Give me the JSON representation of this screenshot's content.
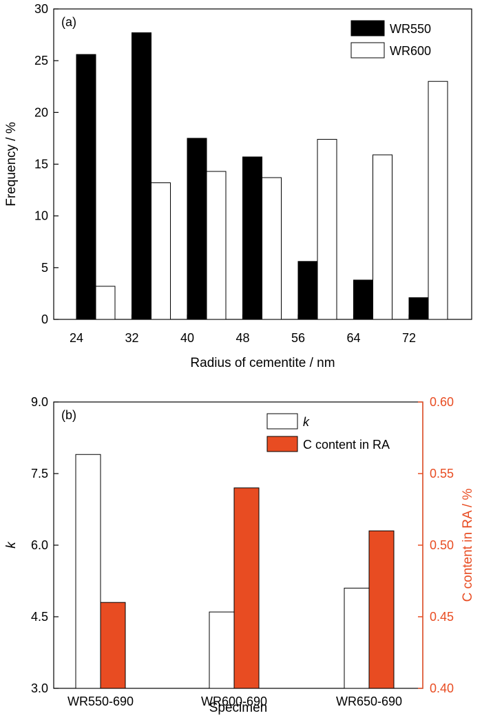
{
  "chart_data": [
    {
      "type": "bar",
      "panel_label": "(a)",
      "xlabel": "Radius of cementite / nm",
      "ylabel": "Frequency / %",
      "categories": [
        "24",
        "32",
        "40",
        "48",
        "56",
        "64",
        "72"
      ],
      "ylim": [
        0,
        30
      ],
      "yticks": [
        "0",
        "5",
        "10",
        "15",
        "20",
        "25",
        "30"
      ],
      "legend_position": "top-right",
      "series": [
        {
          "name": "WR550",
          "values": [
            25.6,
            27.7,
            17.5,
            15.7,
            5.6,
            3.8,
            2.1
          ],
          "color": "#000000"
        },
        {
          "name": "WR600",
          "values": [
            3.2,
            13.2,
            14.3,
            13.7,
            17.4,
            15.9,
            23.0
          ],
          "color": "#ffffff"
        }
      ]
    },
    {
      "type": "bar",
      "panel_label": "(b)",
      "xlabel": "Specimen",
      "ylabel": "k",
      "y2label": "C content in RA / %",
      "categories": [
        "WR550-690",
        "WR600-690",
        "WR650-690"
      ],
      "ylim": [
        3.0,
        9.0
      ],
      "yticks": [
        "3.0",
        "4.5",
        "6.0",
        "7.5",
        "9.0"
      ],
      "y2lim": [
        0.4,
        0.6
      ],
      "y2ticks": [
        "0.40",
        "0.45",
        "0.50",
        "0.55",
        "0.60"
      ],
      "legend_position": "top-right",
      "series": [
        {
          "name": "k",
          "axis": "left",
          "values": [
            7.9,
            4.6,
            5.1
          ],
          "color": "#ffffff"
        },
        {
          "name": "C content in RA",
          "axis": "right",
          "values": [
            0.46,
            0.54,
            0.51
          ],
          "color": "#e84c22"
        }
      ],
      "colors": {
        "secondary_axis": "#e84c22"
      }
    }
  ]
}
